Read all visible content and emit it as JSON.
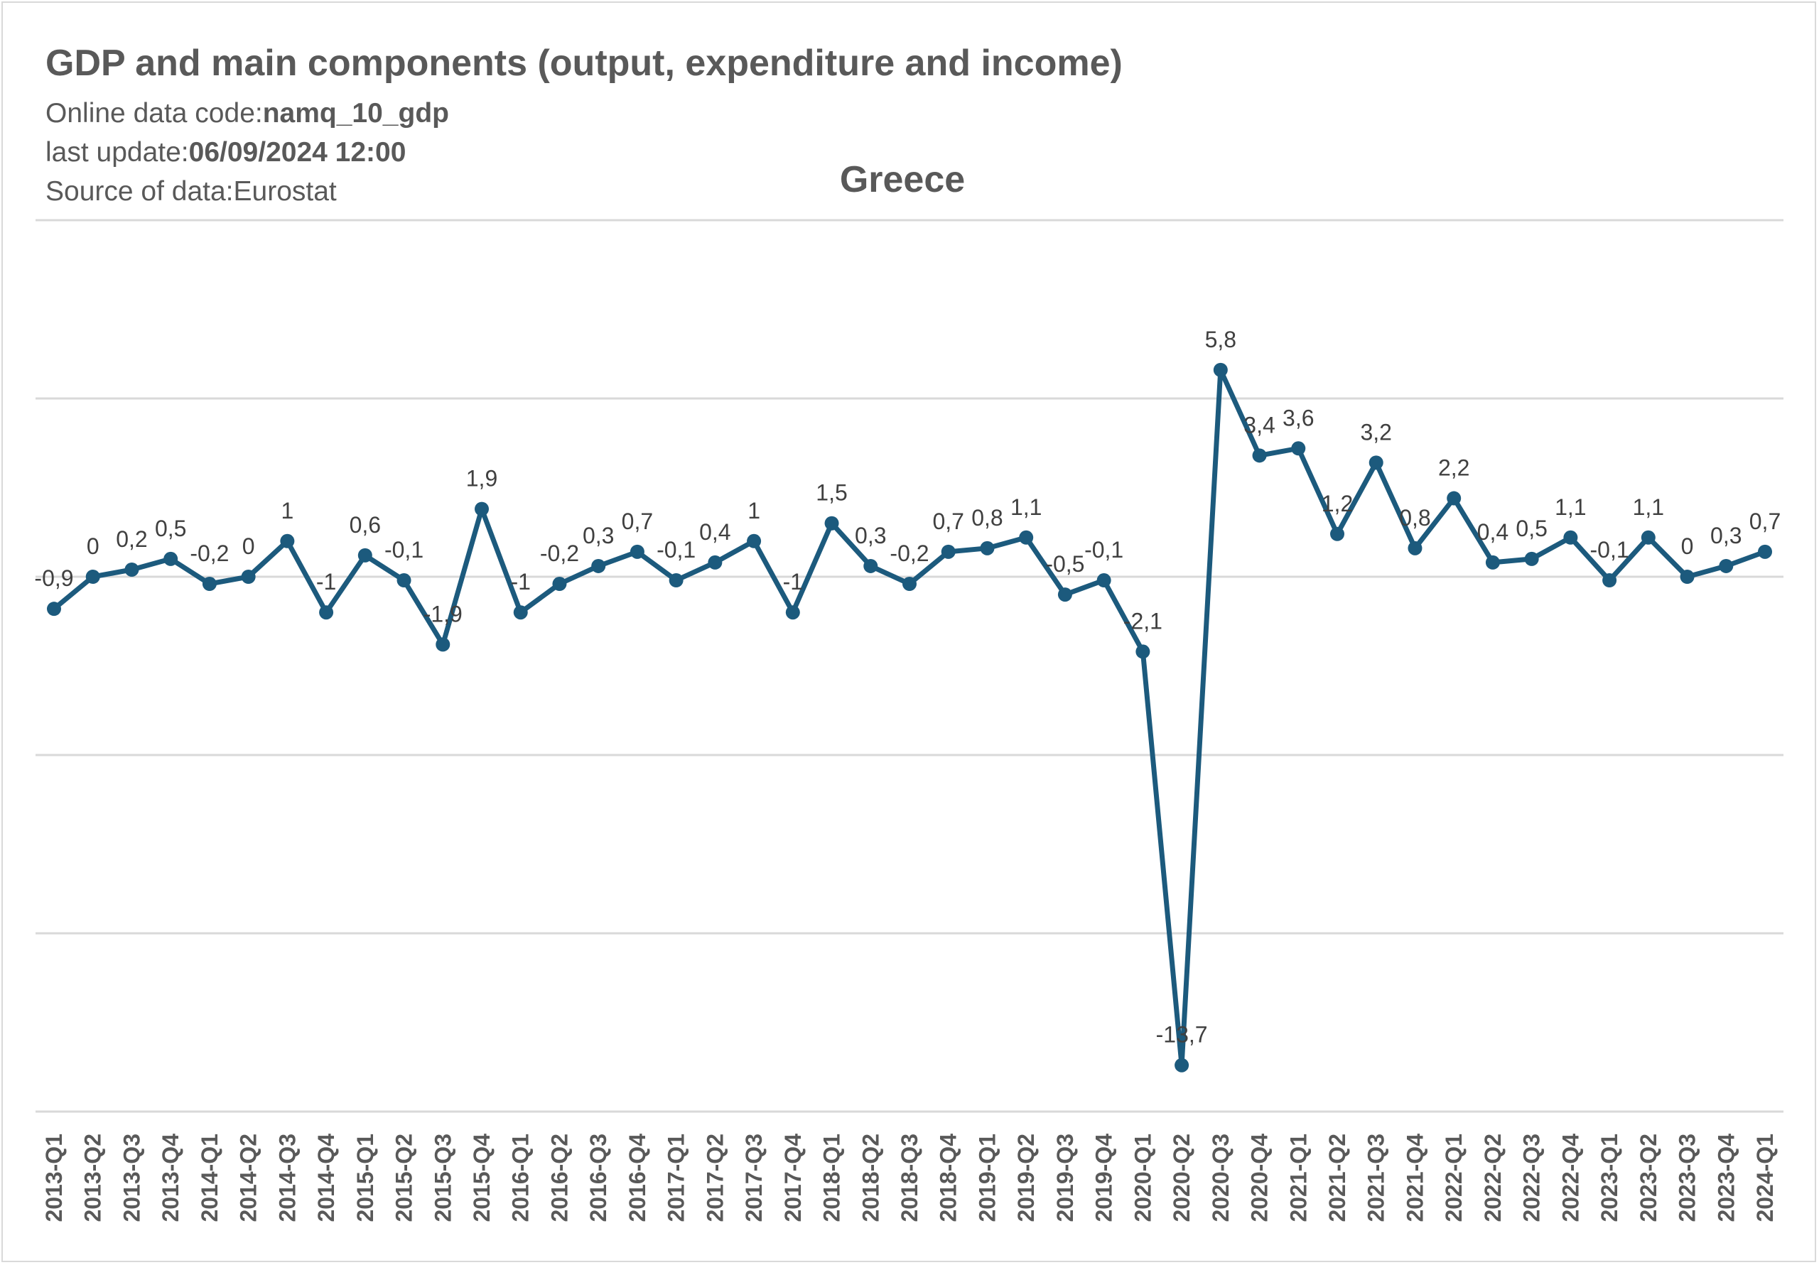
{
  "header": {
    "title": "GDP and main components (output, expenditure and income)",
    "code_label": "Online data code:",
    "code_value": "namq_10_gdp",
    "update_label": "last update:",
    "update_value": "06/09/2024 12:00",
    "source_label": "Source of data:",
    "source_value": "Eurostat"
  },
  "chart_data": {
    "type": "line",
    "title": "Greece",
    "xlabel": "",
    "ylabel": "",
    "ylim": [
      -15,
      10
    ],
    "grid": true,
    "line_color": "#1c5a7d",
    "categories": [
      "2013-Q1",
      "2013-Q2",
      "2013-Q3",
      "2013-Q4",
      "2014-Q1",
      "2014-Q2",
      "2014-Q3",
      "2014-Q4",
      "2015-Q1",
      "2015-Q2",
      "2015-Q3",
      "2015-Q4",
      "2016-Q1",
      "2016-Q2",
      "2016-Q3",
      "2016-Q4",
      "2017-Q1",
      "2017-Q2",
      "2017-Q3",
      "2017-Q4",
      "2018-Q1",
      "2018-Q2",
      "2018-Q3",
      "2018-Q4",
      "2019-Q1",
      "2019-Q2",
      "2019-Q3",
      "2019-Q4",
      "2020-Q1",
      "2020-Q2",
      "2020-Q3",
      "2020-Q4",
      "2021-Q1",
      "2021-Q2",
      "2021-Q3",
      "2021-Q4",
      "2022-Q1",
      "2022-Q2",
      "2022-Q3",
      "2022-Q4",
      "2023-Q1",
      "2023-Q2",
      "2023-Q3",
      "2023-Q4",
      "2024-Q1"
    ],
    "values": [
      -0.9,
      0,
      0.2,
      0.5,
      -0.2,
      0,
      1,
      -1,
      0.6,
      -0.1,
      -1.9,
      1.9,
      -1,
      -0.2,
      0.3,
      0.7,
      -0.1,
      0.4,
      1,
      -1,
      1.5,
      0.3,
      -0.2,
      0.7,
      0.8,
      1.1,
      -0.5,
      -0.1,
      -2.1,
      -13.7,
      5.8,
      3.4,
      3.6,
      1.2,
      3.2,
      0.8,
      2.2,
      0.4,
      0.5,
      1.1,
      -0.1,
      1.1,
      0,
      0.3,
      0.7
    ],
    "data_labels": [
      "-0,9",
      "0",
      "0,2",
      "0,5",
      "-0,2",
      "0",
      "1",
      "-1",
      "0,6",
      "-0,1",
      "-1,9",
      "1,9",
      "-1",
      "-0,2",
      "0,3",
      "0,7",
      "-0,1",
      "0,4",
      "1",
      "-1",
      "1,5",
      "0,3",
      "-0,2",
      "0,7",
      "0,8",
      "1,1",
      "-0,5",
      "-0,1",
      "-2,1",
      "-13,7",
      "5,8",
      "3,4",
      "3,6",
      "1,2",
      "3,2",
      "0,8",
      "2,2",
      "0,4",
      "0,5",
      "1,1",
      "-0,1",
      "1,1",
      "0",
      "0,3",
      "0,7"
    ]
  }
}
